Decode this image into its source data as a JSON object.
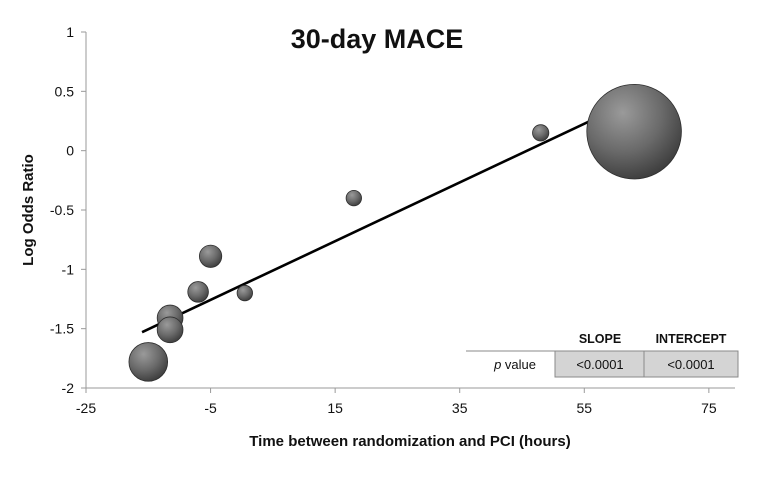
{
  "chart_data": {
    "type": "scatter",
    "title": "30-day MACE",
    "xlabel": "Time between randomization and PCI (hours)",
    "ylabel": "Log Odds Ratio",
    "xlim": [
      -25,
      80
    ],
    "ylim": [
      -2,
      1
    ],
    "xticks": [
      "-25",
      "-5",
      "15",
      "35",
      "55",
      "75"
    ],
    "xtick_values": [
      -25,
      -5,
      15,
      35,
      55,
      75
    ],
    "yticks": [
      "1",
      "0.5",
      "0",
      "-0.5",
      "-1",
      "-1.5",
      "-2"
    ],
    "ytick_values": [
      1,
      0.5,
      0,
      -0.5,
      -1,
      -1.5,
      -2
    ],
    "grid": false,
    "bubble_weight": [
      4.5,
      3.0,
      3.0,
      2.4,
      2.6,
      1.8,
      1.8,
      1.9,
      11.0
    ],
    "points": [
      {
        "x": -15,
        "y": -1.78
      },
      {
        "x": -11.5,
        "y": -1.41
      },
      {
        "x": -11.5,
        "y": -1.51
      },
      {
        "x": -7,
        "y": -1.19
      },
      {
        "x": -5,
        "y": -0.89
      },
      {
        "x": 0.5,
        "y": -1.2
      },
      {
        "x": 18,
        "y": -0.4
      },
      {
        "x": 48,
        "y": 0.15
      },
      {
        "x": 63,
        "y": 0.16
      }
    ],
    "regression": {
      "x1": -16,
      "y1": -1.53,
      "x2": 62,
      "y2": 0.4
    },
    "table": {
      "columns": [
        "SLOPE",
        "INTERCEPT"
      ],
      "row_label_prefix": "p",
      "row_label_suffix": " value",
      "values": [
        "<0.0001",
        "<0.0001"
      ]
    }
  },
  "colors": {
    "bubble_light": "#9a9a9a",
    "bubble_mid": "#6a6a6a",
    "bubble_dark": "#3a3a3a",
    "line": "#000000",
    "table_fill": "#d4d4d4"
  }
}
